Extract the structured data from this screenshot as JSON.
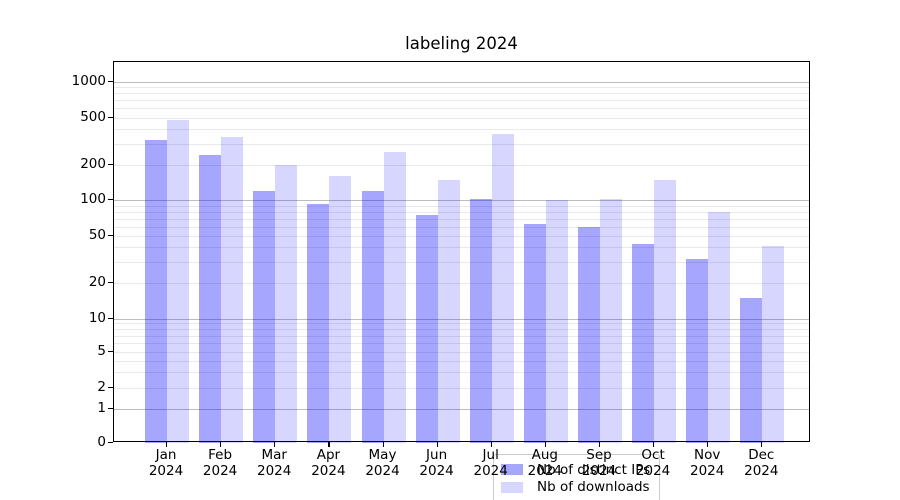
{
  "title": "labeling 2024",
  "accent_colors": {
    "distinct_ips_bar": "rgba(0,0,255,0.35)",
    "downloads_bar": "rgba(0,0,255,0.16)",
    "major_grid": "#bdbdbd",
    "minor_grid": "#e9e9e9"
  },
  "chart_data": {
    "type": "bar",
    "title": "labeling 2024",
    "categories": [
      "Jan 2024",
      "Feb 2024",
      "Mar 2024",
      "Apr 2024",
      "May 2024",
      "Jun 2024",
      "Jul 2024",
      "Aug 2024",
      "Sep 2024",
      "Oct 2024",
      "Nov 2024",
      "Dec 2024"
    ],
    "month_line1": [
      "Jan",
      "Feb",
      "Mar",
      "Apr",
      "May",
      "Jun",
      "Jul",
      "Aug",
      "Sep",
      "Oct",
      "Nov",
      "Dec"
    ],
    "month_line2": "2024",
    "series": [
      {
        "name": "Nb of distinct IPs",
        "color": "rgba(0,0,255,0.35)",
        "values": [
          325,
          243,
          120,
          93,
          120,
          75,
          103,
          63,
          60,
          43,
          32,
          15
        ]
      },
      {
        "name": "Nb of downloads",
        "color": "rgba(0,0,255,0.16)",
        "values": [
          480,
          345,
          200,
          160,
          255,
          150,
          364,
          100,
          103,
          148,
          80,
          41
        ]
      }
    ],
    "yscale": "symlog",
    "ytick_labels": [
      "0",
      "1",
      "2",
      "5",
      "10",
      "20",
      "50",
      "100",
      "200",
      "500",
      "1000"
    ],
    "ytick_values": [
      0,
      1,
      2,
      5,
      10,
      20,
      50,
      100,
      200,
      500,
      1000
    ],
    "ylim": [
      0,
      1450
    ],
    "grid": true,
    "legend_position": "lower center",
    "xlabel": "",
    "ylabel": ""
  }
}
